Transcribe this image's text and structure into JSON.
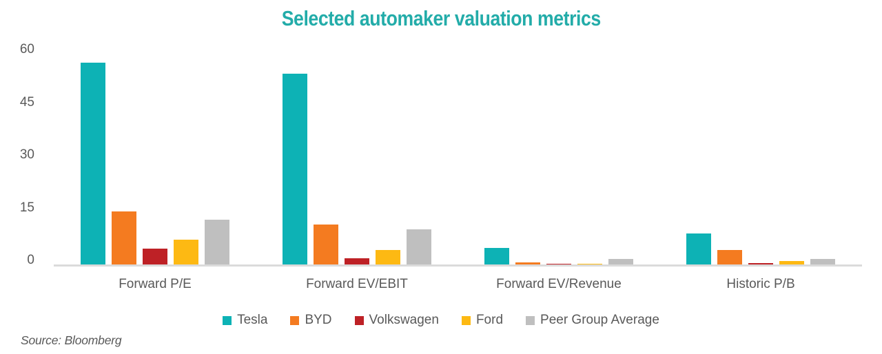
{
  "title": "Selected automaker valuation metrics",
  "source": "Source: Bloomberg",
  "colors": {
    "title": "#23ACA9",
    "text": "#595959",
    "axis_line": "#DBDBDB"
  },
  "chart_data": {
    "type": "bar",
    "title": "Selected automaker valuation metrics",
    "xlabel": "",
    "ylabel": "",
    "categories": [
      "Forward P/E",
      "Forward EV/EBIT",
      "Forward EV/Revenue",
      "Historic P/B"
    ],
    "series": [
      {
        "name": "Tesla",
        "color": "#0DB2B5",
        "values": [
          57.5,
          54.3,
          4.7,
          8.8
        ]
      },
      {
        "name": "BYD",
        "color": "#F47B20",
        "values": [
          15.1,
          11.4,
          0.5,
          4.1
        ]
      },
      {
        "name": "Volkswagen",
        "color": "#BE2126",
        "values": [
          4.5,
          1.8,
          0.1,
          0.4
        ]
      },
      {
        "name": "Ford",
        "color": "#FDB913",
        "values": [
          7.1,
          4.1,
          0.1,
          1.0
        ]
      },
      {
        "name": "Peer Group Average",
        "color": "#BFBFBF",
        "values": [
          12.7,
          10.0,
          1.6,
          1.6
        ]
      }
    ],
    "y_ticks": [
      0,
      15,
      30,
      45,
      60
    ],
    "ylim": [
      0,
      60
    ],
    "grid": false,
    "legend_position": "bottom"
  }
}
